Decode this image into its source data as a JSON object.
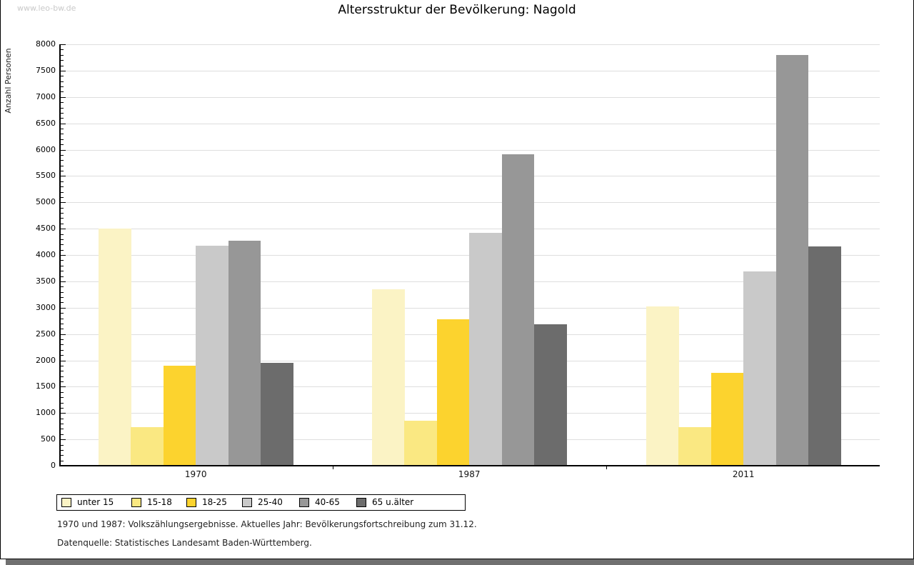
{
  "watermark": "www.leo-bw.de",
  "title": "Altersstruktur der Bevölkerung: Nagold",
  "footnotes": {
    "line1": "1970 und 1987: Volkszählungsergebnisse. Aktuelles Jahr: Bevölkerungsfortschreibung zum 31.12.",
    "line2": "Datenquelle: Statistisches Landesamt Baden-Württemberg."
  },
  "chart_data": {
    "type": "bar",
    "title": "Altersstruktur der Bevölkerung: Nagold",
    "ylabel": "Anzahl Personen",
    "xlabel": "",
    "categories": [
      "1970",
      "1987",
      "2011"
    ],
    "series": [
      {
        "name": "unter 15",
        "color": "#FBF3C5",
        "values": [
          4500,
          3350,
          3020
        ]
      },
      {
        "name": "15-18",
        "color": "#FAE882",
        "values": [
          730,
          850,
          730
        ]
      },
      {
        "name": "18-25",
        "color": "#FCD32E",
        "values": [
          1900,
          2780,
          1760
        ]
      },
      {
        "name": "25-40",
        "color": "#C9C9C9",
        "values": [
          4180,
          4420,
          3690
        ]
      },
      {
        "name": "40-65",
        "color": "#979797",
        "values": [
          4270,
          5910,
          7800
        ]
      },
      {
        "name": "65 u.älter",
        "color": "#6C6C6C",
        "values": [
          1950,
          2680,
          4160
        ]
      }
    ],
    "ylim": [
      0,
      8000
    ],
    "yticks": [
      0,
      500,
      1000,
      1500,
      2000,
      2500,
      3000,
      3500,
      4000,
      4500,
      5000,
      5500,
      6000,
      6500,
      7000,
      7500,
      8000
    ],
    "minor_tick_step": 100,
    "grid": true,
    "legend_position": "bottom",
    "gridline_color": "#dedede"
  }
}
